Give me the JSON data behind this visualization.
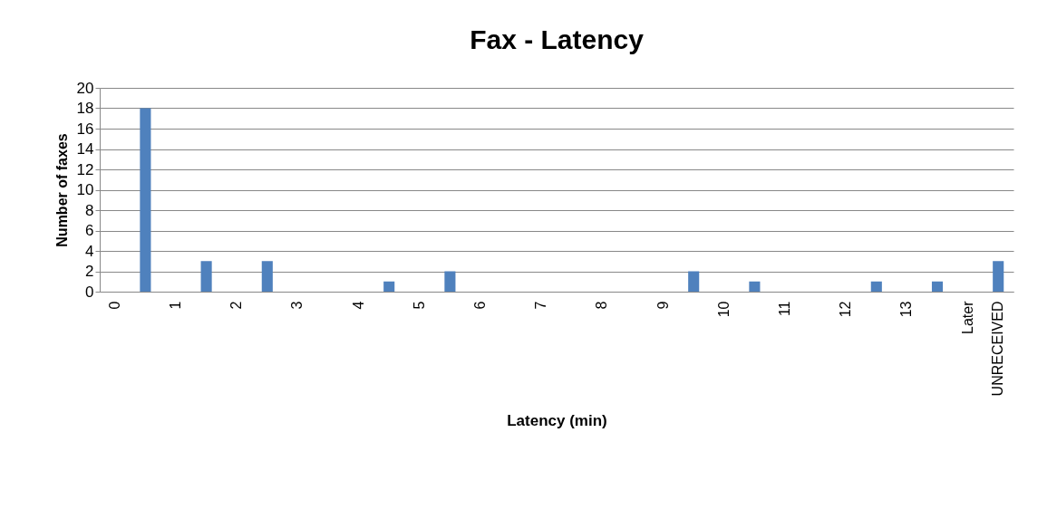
{
  "chart_data": {
    "type": "bar",
    "title": "Fax - Latency",
    "xlabel": "Latency (min)",
    "ylabel": "Number of faxes",
    "categories": [
      "0",
      null,
      "1",
      null,
      "2",
      null,
      "3",
      null,
      "4",
      null,
      "5",
      null,
      "6",
      null,
      "7",
      null,
      "8",
      null,
      "9",
      null,
      "10",
      null,
      "11",
      null,
      "12",
      null,
      "13",
      null,
      "Later",
      "UNRECEIVED"
    ],
    "values": [
      0,
      18,
      0,
      3,
      0,
      3,
      0,
      0,
      0,
      1,
      0,
      2,
      0,
      0,
      0,
      0,
      0,
      0,
      0,
      2,
      0,
      1,
      0,
      0,
      0,
      1,
      0,
      1,
      0,
      3
    ],
    "color": "#4f81bd",
    "ylim": [
      0,
      20
    ],
    "yticks": [
      0,
      2,
      4,
      6,
      8,
      10,
      12,
      14,
      16,
      18,
      20
    ],
    "grid": "y"
  }
}
